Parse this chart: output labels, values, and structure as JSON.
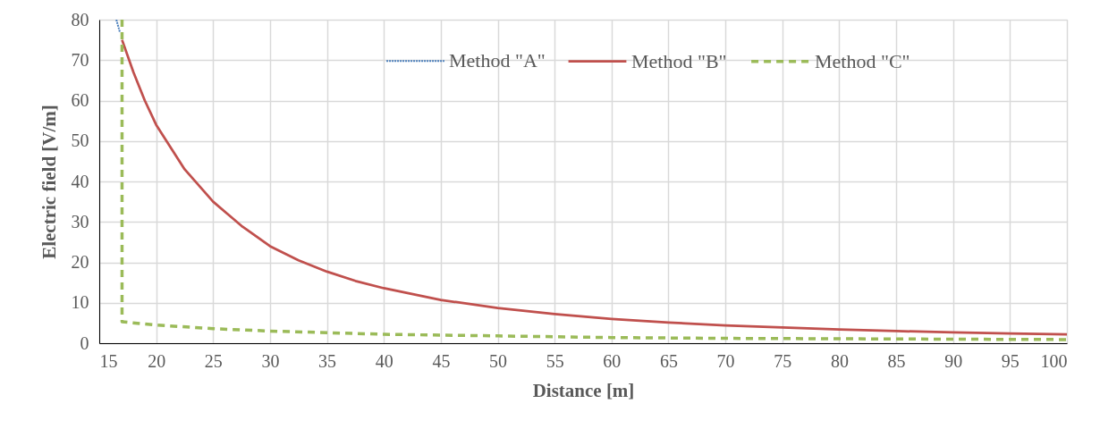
{
  "chart_data": {
    "type": "line",
    "xlabel": "Distance [m]",
    "ylabel": "Electric field [V/m]",
    "xlim": [
      15,
      100
    ],
    "ylim": [
      0,
      80
    ],
    "xticks": [
      15,
      20,
      25,
      30,
      35,
      40,
      45,
      50,
      55,
      60,
      65,
      70,
      75,
      80,
      85,
      90,
      95,
      100
    ],
    "yticks": [
      0,
      10,
      20,
      30,
      40,
      50,
      60,
      70,
      80
    ],
    "grid": true,
    "legend": "top",
    "series": [
      {
        "name": "Method \"A\"",
        "color": "#4a7ebb",
        "line_style": "dotted",
        "x": [
          16.5,
          16.8
        ],
        "values": [
          80,
          77
        ]
      },
      {
        "name": "Method \"B\"",
        "color": "#c0504d",
        "line_style": "solid",
        "x": [
          17,
          18,
          19,
          20,
          22.5,
          25,
          27.5,
          30,
          32.5,
          35,
          37.5,
          40,
          45,
          50,
          55,
          60,
          65,
          70,
          75,
          80,
          85,
          90,
          95,
          100
        ],
        "values": [
          75,
          67,
          60,
          54,
          43,
          35,
          29,
          24,
          20.5,
          17.7,
          15.4,
          13.6,
          10.7,
          8.7,
          7.2,
          6.0,
          5.1,
          4.4,
          3.9,
          3.4,
          3.0,
          2.7,
          2.4,
          2.2
        ]
      },
      {
        "name": "Method \"C\"",
        "color": "#9bbb59",
        "line_style": "dashed",
        "x": [
          17,
          17,
          20,
          25,
          30,
          40,
          50,
          60,
          70,
          80,
          90,
          100
        ],
        "values": [
          80,
          5.3,
          4.5,
          3.6,
          3.0,
          2.2,
          1.8,
          1.4,
          1.2,
          1.1,
          1.0,
          0.9
        ]
      }
    ]
  }
}
